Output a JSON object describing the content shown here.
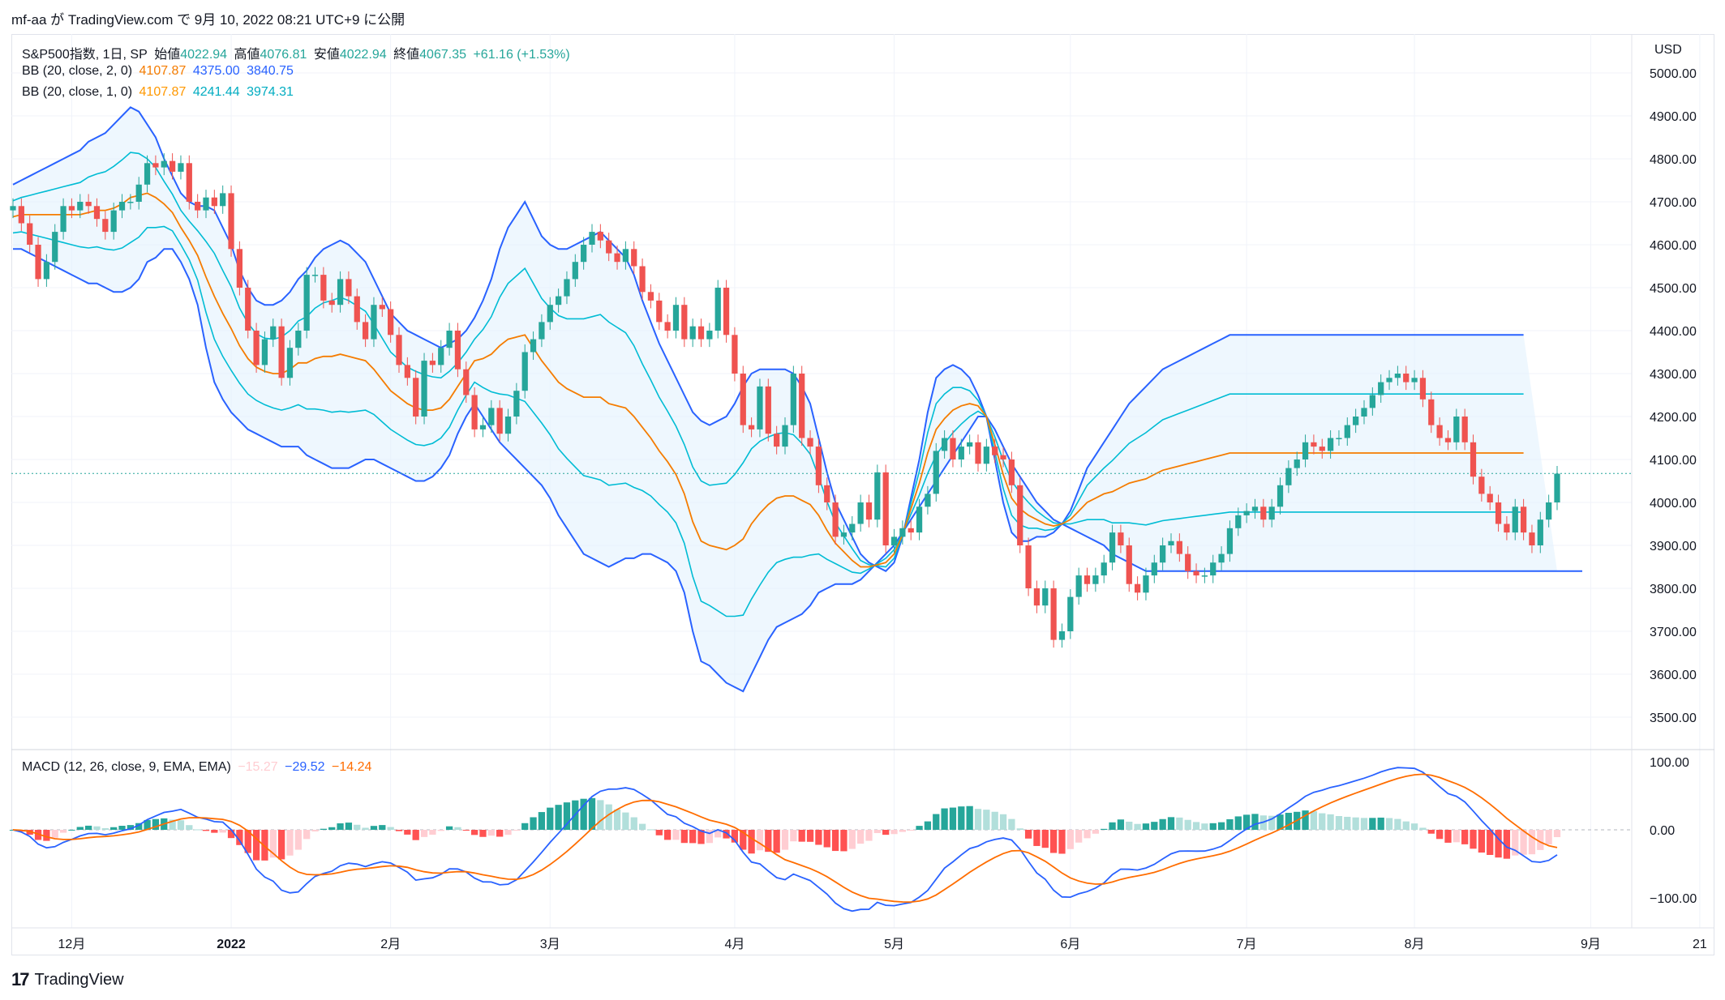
{
  "header": {
    "text": "mf-aa が TradingView.com で 9月 10, 2022 08:21 UTC+9 に公開"
  },
  "footer": {
    "logo": "TradingView"
  },
  "legend": {
    "symbol": {
      "name": "S&P500指数, 1日, SP",
      "o_label": "始値",
      "o": "4022.94",
      "h_label": "高値",
      "h": "4076.81",
      "l_label": "安値",
      "l": "4022.94",
      "c_label": "終値",
      "c": "4067.35",
      "chg": "+61.16 (+1.53%)"
    },
    "bb2": {
      "label": "BB (20, close, 2, 0)",
      "basis": "4107.87",
      "upper": "4375.00",
      "lower": "3840.75"
    },
    "bb1": {
      "label": "BB (20, close, 1, 0)",
      "basis": "4107.87",
      "upper": "4241.44",
      "lower": "3974.31"
    },
    "macd": {
      "label": "MACD (12, 26, close, 9, EMA, EMA)",
      "hist": "−15.27",
      "macd": "−29.52",
      "signal": "−14.24"
    }
  },
  "colors": {
    "up": "#26a69a",
    "down": "#ef5350",
    "basis": "#f57c00",
    "outer": "#2962ff",
    "inner": "#00bcd4",
    "fill": "#e3f2fd",
    "macd": "#2962ff",
    "signal": "#ff6d00",
    "hist_up_strong": "#26a69a",
    "hist_up_weak": "#b2dfdb",
    "hist_dn_strong": "#ff5252",
    "hist_dn_weak": "#ffcdd2"
  },
  "chart_data": {
    "type": "candlestick",
    "price_axis": {
      "unit": "USD",
      "ticks": [
        5000,
        4900,
        4800,
        4700,
        4600,
        4500,
        4400,
        4300,
        4200,
        4100,
        4000,
        3900,
        3800,
        3700,
        3600,
        3500
      ],
      "labels": [
        "5000.00",
        "4900.00",
        "4800.00",
        "4700.00",
        "4600.00",
        "4500.00",
        "4400.00",
        "4300.00",
        "4200.00",
        "4100.00",
        "4000.00",
        "3900.00",
        "3800.00",
        "3700.00",
        "3600.00",
        "3500.00"
      ]
    },
    "macd_axis": {
      "ticks": [
        100,
        0,
        -100
      ],
      "labels": [
        "100.00",
        "0.00",
        "−100.00"
      ]
    },
    "time_axis": {
      "labels": [
        "12月",
        "2022",
        "2月",
        "3月",
        "4月",
        "5月",
        "6月",
        "7月",
        "8月",
        "9月",
        "21"
      ],
      "positions": [
        7,
        26,
        45,
        64,
        86,
        105,
        126,
        147,
        167,
        188,
        201
      ]
    },
    "last_close": 4067.35,
    "closes": [
      4690,
      4650,
      4600,
      4520,
      4560,
      4630,
      4690,
      4680,
      4700,
      4690,
      4660,
      4630,
      4680,
      4700,
      4700,
      4740,
      4790,
      4780,
      4795,
      4770,
      4790,
      4700,
      4680,
      4710,
      4690,
      4720,
      4590,
      4500,
      4400,
      4320,
      4380,
      4410,
      4290,
      4360,
      4400,
      4530,
      4530,
      4470,
      4460,
      4520,
      4480,
      4420,
      4380,
      4460,
      4450,
      4390,
      4320,
      4290,
      4200,
      4330,
      4320,
      4360,
      4400,
      4310,
      4250,
      4170,
      4180,
      4220,
      4160,
      4200,
      4260,
      4350,
      4380,
      4420,
      4460,
      4480,
      4520,
      4560,
      4600,
      4630,
      4610,
      4580,
      4560,
      4590,
      4550,
      4490,
      4470,
      4420,
      4400,
      4460,
      4380,
      4410,
      4380,
      4400,
      4500,
      4390,
      4300,
      4180,
      4170,
      4270,
      4160,
      4130,
      4180,
      4300,
      4150,
      4130,
      4040,
      4000,
      3920,
      3930,
      3950,
      4000,
      3960,
      4070,
      3900,
      3920,
      3940,
      3930,
      3990,
      4020,
      4120,
      4150,
      4100,
      4130,
      4140,
      4090,
      4130,
      4110,
      4100,
      4040,
      3900,
      3800,
      3760,
      3800,
      3680,
      3700,
      3780,
      3830,
      3810,
      3830,
      3860,
      3930,
      3900,
      3810,
      3790,
      3830,
      3860,
      3900,
      3910,
      3880,
      3840,
      3830,
      3830,
      3860,
      3880,
      3940,
      3970,
      3980,
      3990,
      3960,
      3990,
      4040,
      4080,
      4100,
      4140,
      4130,
      4120,
      4150,
      4150,
      4180,
      4200,
      4220,
      4250,
      4280,
      4290,
      4300,
      4280,
      4290,
      4240,
      4180,
      4150,
      4140,
      4200,
      4140,
      4060,
      4020,
      4000,
      3950,
      3930,
      3990,
      3930,
      3900,
      3960,
      4000,
      4067
    ],
    "bb2_upper": [
      4740,
      4750,
      4760,
      4770,
      4780,
      4790,
      4800,
      4810,
      4820,
      4840,
      4850,
      4860,
      4880,
      4900,
      4920,
      4910,
      4880,
      4850,
      4800,
      4760,
      4720,
      4700,
      4690,
      4690,
      4680,
      4640,
      4600,
      4540,
      4500,
      4470,
      4460,
      4460,
      4470,
      4490,
      4520,
      4540,
      4570,
      4590,
      4600,
      4610,
      4600,
      4580,
      4560,
      4520,
      4480,
      4440,
      4420,
      4400,
      4390,
      4380,
      4370,
      4360,
      4370,
      4380,
      4400,
      4430,
      4470,
      4520,
      4590,
      4640,
      4670,
      4700,
      4660,
      4620,
      4600,
      4590,
      4590,
      4600,
      4610,
      4620,
      4630,
      4610,
      4590,
      4570,
      4530,
      4470,
      4420,
      4370,
      4330,
      4290,
      4250,
      4210,
      4190,
      4180,
      4190,
      4200,
      4230,
      4270,
      4300,
      4310,
      4310,
      4310,
      4310,
      4300,
      4270,
      4230,
      4150,
      4070,
      4000,
      3960,
      3920,
      3880,
      3860,
      3850,
      3840,
      3860,
      3920,
      4010,
      4100,
      4210,
      4290,
      4310,
      4320,
      4310,
      4290,
      4250,
      4200,
      4100,
      4000,
      3930,
      3910,
      3910,
      3920,
      3920,
      3930,
      3950,
      3980,
      4030,
      4080,
      4110,
      4140,
      4170,
      4200,
      4230,
      4250,
      4270,
      4290,
      4310,
      4320,
      4330,
      4340,
      4350,
      4360,
      4370,
      4380,
      4390,
      4390,
      4390,
      4390,
      4390,
      4390,
      4390,
      4390,
      4390,
      4390,
      4390,
      4390,
      4390,
      4390,
      4390,
      4390,
      4390,
      4390,
      4390,
      4390,
      4390,
      4390,
      4390,
      4390,
      4390,
      4390,
      4390,
      4390,
      4390,
      4390,
      4390,
      4390,
      4390,
      4390,
      4390,
      4390
    ],
    "bb2_lower": [
      4590,
      4590,
      4580,
      4570,
      4560,
      4550,
      4540,
      4530,
      4520,
      4510,
      4510,
      4500,
      4490,
      4490,
      4500,
      4520,
      4560,
      4570,
      4590,
      4590,
      4560,
      4520,
      4460,
      4360,
      4280,
      4240,
      4210,
      4190,
      4170,
      4160,
      4150,
      4140,
      4130,
      4130,
      4130,
      4110,
      4100,
      4090,
      4080,
      4080,
      4080,
      4090,
      4100,
      4100,
      4090,
      4080,
      4070,
      4060,
      4050,
      4050,
      4060,
      4080,
      4110,
      4160,
      4200,
      4230,
      4200,
      4170,
      4140,
      4120,
      4100,
      4080,
      4060,
      4040,
      4010,
      3970,
      3940,
      3910,
      3880,
      3870,
      3860,
      3850,
      3860,
      3870,
      3870,
      3880,
      3880,
      3870,
      3860,
      3840,
      3790,
      3700,
      3630,
      3620,
      3600,
      3580,
      3570,
      3560,
      3600,
      3640,
      3680,
      3710,
      3720,
      3730,
      3740,
      3760,
      3790,
      3800,
      3810,
      3810,
      3810,
      3820,
      3840,
      3860,
      3880,
      3900,
      3930,
      3960,
      3990,
      4020,
      4050,
      4080,
      4110,
      4140,
      4170,
      4200,
      4200,
      4170,
      4130,
      4090,
      4060,
      4030,
      4000,
      3980,
      3960,
      3950,
      3940,
      3930,
      3920,
      3910,
      3900,
      3880,
      3870,
      3860,
      3850,
      3840,
      3840,
      3840,
      3840,
      3840,
      3840,
      3840,
      3840,
      3840,
      3840,
      3840,
      3840,
      3840,
      3840,
      3840,
      3840,
      3840,
      3840,
      3840,
      3840,
      3840,
      3840,
      3840,
      3840,
      3840,
      3840,
      3840,
      3840,
      3840,
      3840,
      3840,
      3840,
      3840,
      3840,
      3840,
      3840,
      3840,
      3840,
      3840,
      3840,
      3840,
      3840,
      3840,
      3840,
      3840,
      3840,
      3840,
      3840,
      3840,
      3840,
      3840,
      3840,
      3840
    ]
  }
}
